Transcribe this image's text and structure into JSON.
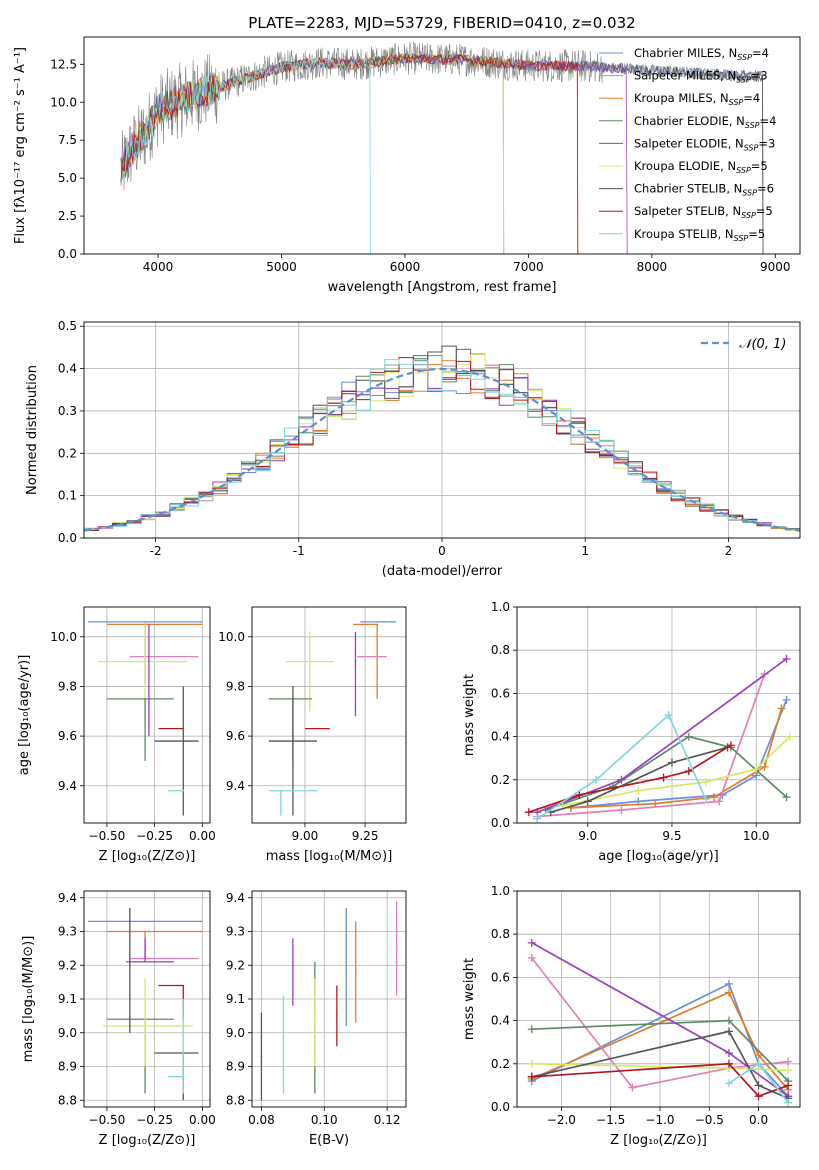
{
  "figure_title": "PLATE=2283, MJD=53729, FIBERID=0410, z=0.032",
  "colors": {
    "Chabrier MILES": "#6a8fd8",
    "Salpeter MILES": "#9b9b9b",
    "Kroupa MILES": "#e07b2c",
    "Chabrier ELODIE": "#5c8a64",
    "Salpeter ELODIE": "#9a3fbf",
    "Kroupa ELODIE": "#d6e86a",
    "Chabrier STELIB": "#555555",
    "Salpeter STELIB": "#b0181e",
    "Kroupa STELIB": "#7fd8dc",
    "pink": "#e07fb8",
    "normal_curve": "#5b8fd6"
  },
  "chart_data": [
    {
      "id": "spectrum",
      "type": "line",
      "xlabel": "wavelength [Angstrom, rest frame]",
      "ylabel": "Flux [fλ10⁻¹⁷ erg cm⁻² s⁻¹ A⁻¹]",
      "xlim": [
        3400,
        9200
      ],
      "ylim": [
        0,
        14.3
      ],
      "xticks": [
        4000,
        5000,
        6000,
        7000,
        8000,
        9000
      ],
      "yticks": [
        0.0,
        2.5,
        5.0,
        7.5,
        10.0,
        12.5
      ],
      "legend_position": "top-right",
      "legend": [
        {
          "label": "Chabrier MILES, N",
          "sub": "SSP",
          "tail": "=4"
        },
        {
          "label": "Salpeter MILES, N",
          "sub": "SSP",
          "tail": "=3"
        },
        {
          "label": "Kroupa MILES, N",
          "sub": "SSP",
          "tail": "=4"
        },
        {
          "label": "Chabrier ELODIE, N",
          "sub": "SSP",
          "tail": "=4"
        },
        {
          "label": "Salpeter ELODIE, N",
          "sub": "SSP",
          "tail": "=3"
        },
        {
          "label": "Kroupa ELODIE, N",
          "sub": "SSP",
          "tail": "=5"
        },
        {
          "label": "Chabrier STELIB, N",
          "sub": "SSP",
          "tail": "=6"
        },
        {
          "label": "Salpeter STELIB, N",
          "sub": "SSP",
          "tail": "=5"
        },
        {
          "label": "Kroupa STELIB, N",
          "sub": "SSP",
          "tail": "=5"
        }
      ],
      "continuum_x": [
        3700,
        3800,
        3900,
        4000,
        4200,
        4500,
        4800,
        5000,
        5300,
        5600,
        6000,
        6500,
        7000,
        7400,
        7800,
        8200,
        8600,
        8900
      ],
      "continuum_y": [
        5.5,
        7.0,
        8.0,
        9.5,
        10.2,
        11.0,
        11.8,
        12.3,
        12.6,
        12.5,
        12.9,
        12.8,
        12.4,
        12.4,
        12.2,
        12.0,
        11.8,
        11.7
      ],
      "model_ranges": [
        [
          3700,
          8900
        ],
        [
          3700,
          8900
        ],
        [
          3700,
          7400
        ],
        [
          3700,
          6800
        ],
        [
          3700,
          7800
        ],
        [
          3700,
          6800
        ],
        [
          3700,
          8900
        ],
        [
          3700,
          7400
        ],
        [
          3700,
          5720
        ]
      ]
    },
    {
      "id": "residuals",
      "type": "histogram",
      "xlabel": "(data-model)/error",
      "ylabel": "Normed distribution",
      "xlim": [
        -2.5,
        2.5
      ],
      "ylim": [
        0,
        0.51
      ],
      "xticks": [
        -2,
        -1,
        0,
        1,
        2
      ],
      "yticks": [
        0.0,
        0.1,
        0.2,
        0.3,
        0.4,
        0.5
      ],
      "bin_width": 0.1,
      "legend_label": "𝒩(0, 1)",
      "legend_position": "top-right",
      "normal_pdf": {
        "mean": 0,
        "sigma": 1
      }
    },
    {
      "id": "age-vs-z",
      "type": "errorbar",
      "xlabel": "Z [log₁₀(Z/Z⊙)]",
      "ylabel": "age  [log₁₀(age/yr)]",
      "xlim": [
        -0.62,
        0.04
      ],
      "ylim": [
        9.25,
        10.12
      ],
      "xticks": [
        -0.5,
        -0.25,
        0.0
      ],
      "xtick_labels": [
        "−0.50",
        "−0.25",
        "0.00"
      ],
      "yticks": [
        9.4,
        9.6,
        9.8,
        10.0
      ],
      "points": [
        {
          "s": "Chabrier MILES",
          "x": -0.3,
          "xerr": [
            0.3,
            0.3
          ],
          "y": 10.06,
          "yerr": [
            0.0,
            0.0
          ]
        },
        {
          "s": "Kroupa MILES",
          "x": -0.3,
          "xerr": [
            0.2,
            0.3
          ],
          "y": 10.05,
          "yerr": [
            0.25,
            0.0
          ]
        },
        {
          "s": "pink",
          "x": -0.2,
          "xerr": [
            0.18,
            0.18
          ],
          "y": 9.92,
          "yerr": [
            0.0,
            0.0
          ]
        },
        {
          "s": "Kroupa ELODIE",
          "x": -0.3,
          "xerr": [
            0.25,
            0.22
          ],
          "y": 9.9,
          "yerr": [
            0.22,
            0.15
          ]
        },
        {
          "s": "Chabrier ELODIE",
          "x": -0.3,
          "xerr": [
            0.2,
            0.15
          ],
          "y": 9.75,
          "yerr": [
            0.25,
            0.0
          ]
        },
        {
          "s": "Salpeter STELIB",
          "x": -0.1,
          "xerr": [
            0.13,
            0.0
          ],
          "y": 9.63,
          "yerr": [
            0.0,
            0.0
          ]
        },
        {
          "s": "Chabrier STELIB",
          "x": -0.1,
          "xerr": [
            0.15,
            0.08
          ],
          "y": 9.58,
          "yerr": [
            0.3,
            0.22
          ]
        },
        {
          "s": "Kroupa STELIB",
          "x": -0.1,
          "xerr": [
            0.08,
            0.0
          ],
          "y": 9.38,
          "yerr": [
            0.0,
            0.0
          ]
        },
        {
          "s": "Salpeter ELODIE",
          "x": -0.28,
          "xerr": [
            0.0,
            0.0
          ],
          "y": 9.8,
          "yerr": [
            0.2,
            0.25
          ]
        }
      ]
    },
    {
      "id": "age-vs-mass",
      "type": "errorbar",
      "xlabel": "mass [log₁₀(M/M⊙)]",
      "ylabel": "",
      "xlim": [
        8.78,
        9.42
      ],
      "ylim": [
        9.25,
        10.12
      ],
      "xticks": [
        9.0,
        9.25
      ],
      "xtick_labels": [
        "9.00",
        "9.25"
      ],
      "yticks": [
        9.4,
        9.6,
        9.8,
        10.0
      ],
      "points": [
        {
          "s": "Chabrier MILES",
          "x": 9.33,
          "xerr": [
            0.1,
            0.05
          ],
          "y": 10.06,
          "yerr": [
            0.0,
            0.0
          ]
        },
        {
          "s": "Kroupa MILES",
          "x": 9.3,
          "xerr": [
            0.1,
            0.0
          ],
          "y": 10.05,
          "yerr": [
            0.3,
            0.0
          ]
        },
        {
          "s": "pink",
          "x": 9.22,
          "xerr": [
            0.0,
            0.12
          ],
          "y": 9.92,
          "yerr": [
            0.0,
            0.0
          ]
        },
        {
          "s": "Kroupa ELODIE",
          "x": 9.02,
          "xerr": [
            0.1,
            0.1
          ],
          "y": 9.9,
          "yerr": [
            0.2,
            0.12
          ]
        },
        {
          "s": "Chabrier ELODIE",
          "x": 8.95,
          "xerr": [
            0.1,
            0.08
          ],
          "y": 9.75,
          "yerr": [
            0.25,
            0.0
          ]
        },
        {
          "s": "Salpeter STELIB",
          "x": 9.1,
          "xerr": [
            0.1,
            0.0
          ],
          "y": 9.63,
          "yerr": [
            0.0,
            0.0
          ]
        },
        {
          "s": "Chabrier STELIB",
          "x": 8.95,
          "xerr": [
            0.1,
            0.1
          ],
          "y": 9.58,
          "yerr": [
            0.3,
            0.22
          ]
        },
        {
          "s": "Kroupa STELIB",
          "x": 8.9,
          "xerr": [
            0.05,
            0.15
          ],
          "y": 9.38,
          "yerr": [
            0.1,
            0.0
          ]
        },
        {
          "s": "Salpeter ELODIE",
          "x": 9.21,
          "xerr": [
            0.0,
            0.0
          ],
          "y": 9.9,
          "yerr": [
            0.22,
            0.12
          ]
        }
      ]
    },
    {
      "id": "weight-vs-age",
      "type": "line",
      "xlabel": "age  [log₁₀(age/yr)]",
      "ylabel": "mass weight",
      "xlim": [
        8.58,
        10.26
      ],
      "ylim": [
        0,
        1.0
      ],
      "xticks": [
        9.0,
        9.5,
        10.0
      ],
      "xtick_labels": [
        "9.0",
        "9.5",
        "10.0"
      ],
      "yticks": [
        0.0,
        0.2,
        0.4,
        0.6,
        0.8,
        1.0
      ],
      "series": [
        {
          "s": "Chabrier MILES",
          "x": [
            8.9,
            9.3,
            9.8,
            10.0,
            10.18
          ],
          "y": [
            0.07,
            0.1,
            0.13,
            0.22,
            0.57
          ]
        },
        {
          "s": "Kroupa MILES",
          "x": [
            8.9,
            9.4,
            9.75,
            10.05,
            10.15
          ],
          "y": [
            0.07,
            0.09,
            0.12,
            0.26,
            0.53
          ]
        },
        {
          "s": "pink",
          "x": [
            8.7,
            9.2,
            9.78,
            10.05
          ],
          "y": [
            0.03,
            0.06,
            0.1,
            0.69
          ]
        },
        {
          "s": "Chabrier ELODIE",
          "x": [
            8.75,
            9.15,
            9.6,
            9.85,
            10.18
          ],
          "y": [
            0.06,
            0.17,
            0.4,
            0.35,
            0.12
          ]
        },
        {
          "s": "Salpeter ELODIE",
          "x": [
            8.7,
            9.2,
            10.18
          ],
          "y": [
            0.05,
            0.2,
            0.76
          ]
        },
        {
          "s": "Kroupa ELODIE",
          "x": [
            8.85,
            9.3,
            9.7,
            10.0,
            10.2
          ],
          "y": [
            0.08,
            0.15,
            0.19,
            0.25,
            0.4
          ]
        },
        {
          "s": "Chabrier STELIB",
          "x": [
            8.78,
            9.0,
            9.5,
            9.83
          ],
          "y": [
            0.05,
            0.1,
            0.28,
            0.35
          ]
        },
        {
          "s": "Salpeter STELIB",
          "x": [
            8.65,
            8.95,
            9.45,
            9.6,
            9.85
          ],
          "y": [
            0.05,
            0.13,
            0.21,
            0.24,
            0.36
          ]
        },
        {
          "s": "Kroupa STELIB",
          "x": [
            8.7,
            9.05,
            9.48,
            9.7
          ],
          "y": [
            0.02,
            0.2,
            0.5,
            0.11
          ]
        }
      ]
    },
    {
      "id": "mass-vs-z",
      "type": "errorbar",
      "xlabel": "Z [log₁₀(Z/Z⊙)]",
      "ylabel": "mass [log₁₀(M/M⊙)]",
      "xlim": [
        -0.62,
        0.04
      ],
      "ylim": [
        8.78,
        9.42
      ],
      "xticks": [
        -0.5,
        -0.25,
        0.0
      ],
      "xtick_labels": [
        "−0.50",
        "−0.25",
        "0.00"
      ],
      "yticks": [
        8.8,
        8.9,
        9.0,
        9.1,
        9.2,
        9.3,
        9.4
      ],
      "points": [
        {
          "s": "Chabrier MILES",
          "x": -0.3,
          "xerr": [
            0.3,
            0.3
          ],
          "y": 9.33,
          "yerr": [
            0.0,
            0.0
          ]
        },
        {
          "s": "Kroupa MILES",
          "x": -0.3,
          "xerr": [
            0.2,
            0.3
          ],
          "y": 9.3,
          "yerr": [
            0.08,
            0.0
          ]
        },
        {
          "s": "pink",
          "x": -0.2,
          "xerr": [
            0.18,
            0.18
          ],
          "y": 9.22,
          "yerr": [
            0.0,
            0.0
          ]
        },
        {
          "s": "Salpeter ELODIE",
          "x": -0.3,
          "xerr": [
            0.1,
            0.15
          ],
          "y": 9.21,
          "yerr": [
            0.0,
            0.07
          ]
        },
        {
          "s": "Salpeter STELIB",
          "x": -0.1,
          "xerr": [
            0.13,
            0.0
          ],
          "y": 9.14,
          "yerr": [
            0.1,
            0.0
          ]
        },
        {
          "s": "Chabrier ELODIE",
          "x": -0.3,
          "xerr": [
            0.2,
            0.15
          ],
          "y": 9.04,
          "yerr": [
            0.22,
            0.0
          ]
        },
        {
          "s": "Kroupa ELODIE",
          "x": -0.3,
          "xerr": [
            0.22,
            0.25
          ],
          "y": 9.02,
          "yerr": [
            0.12,
            0.14
          ]
        },
        {
          "s": "Chabrier STELIB",
          "x": -0.1,
          "xerr": [
            0.15,
            0.08
          ],
          "y": 8.94,
          "yerr": [
            0.14,
            0.0
          ]
        },
        {
          "s": "Kroupa STELIB",
          "x": -0.1,
          "xerr": [
            0.08,
            0.0
          ],
          "y": 8.87,
          "yerr": [
            0.05,
            0.23
          ]
        },
        {
          "s": "Chabrier STELIB",
          "x": -0.38,
          "xerr": [
            0.0,
            0.0
          ],
          "y": 9.2,
          "yerr": [
            0.2,
            0.17
          ]
        }
      ]
    },
    {
      "id": "mass-vs-ebv",
      "type": "errorbar",
      "xlabel": "E(B-V)",
      "ylabel": "",
      "xlim": [
        0.077,
        0.126
      ],
      "ylim": [
        8.78,
        9.42
      ],
      "xticks": [
        0.08,
        0.1,
        0.12
      ],
      "xtick_labels": [
        "0.08",
        "0.10",
        "0.12"
      ],
      "yticks": [
        8.8,
        8.9,
        9.0,
        9.1,
        9.2,
        9.3,
        9.4
      ],
      "points": [
        {
          "s": "Chabrier STELIB",
          "x": 0.08,
          "xerr": [
            0,
            0
          ],
          "y": 8.93,
          "yerr": [
            0.13,
            0.13
          ]
        },
        {
          "s": "Kroupa STELIB",
          "x": 0.087,
          "xerr": [
            0,
            0
          ],
          "y": 8.96,
          "yerr": [
            0.14,
            0.15
          ]
        },
        {
          "s": "Salpeter ELODIE",
          "x": 0.09,
          "xerr": [
            0,
            0
          ],
          "y": 9.18,
          "yerr": [
            0.1,
            0.1
          ]
        },
        {
          "s": "Chabrier ELODIE",
          "x": 0.097,
          "xerr": [
            0,
            0
          ],
          "y": 9.01,
          "yerr": [
            0.19,
            0.2
          ]
        },
        {
          "s": "Kroupa ELODIE",
          "x": 0.097,
          "xerr": [
            0,
            0
          ],
          "y": 9.03,
          "yerr": [
            0.13,
            0.13
          ]
        },
        {
          "s": "Salpeter STELIB",
          "x": 0.104,
          "xerr": [
            0,
            0
          ],
          "y": 9.05,
          "yerr": [
            0.09,
            0.09
          ]
        },
        {
          "s": "Chabrier MILES",
          "x": 0.107,
          "xerr": [
            0,
            0
          ],
          "y": 9.19,
          "yerr": [
            0.17,
            0.18
          ]
        },
        {
          "s": "Kroupa MILES",
          "x": 0.11,
          "xerr": [
            0,
            0
          ],
          "y": 9.18,
          "yerr": [
            0.15,
            0.15
          ]
        },
        {
          "s": "pink",
          "x": 0.123,
          "xerr": [
            0,
            0
          ],
          "y": 9.25,
          "yerr": [
            0.14,
            0.14
          ]
        }
      ]
    },
    {
      "id": "weight-vs-z",
      "type": "line",
      "xlabel": "Z [log₁₀(Z/Z⊙)]",
      "ylabel": "mass weight",
      "xlim": [
        -2.45,
        0.42
      ],
      "ylim": [
        0,
        1.0
      ],
      "xticks": [
        -2.0,
        -1.5,
        -1.0,
        -0.5,
        0.0
      ],
      "xtick_labels": [
        "−2.0",
        "−1.5",
        "−1.0",
        "−0.5",
        "0.0"
      ],
      "yticks": [
        0.0,
        0.2,
        0.4,
        0.6,
        0.8,
        1.0
      ],
      "series": [
        {
          "s": "Chabrier MILES",
          "x": [
            -2.3,
            -0.3,
            0.0,
            0.3
          ],
          "y": [
            0.12,
            0.57,
            0.2,
            0.05
          ]
        },
        {
          "s": "Kroupa MILES",
          "x": [
            -2.3,
            -0.3,
            0.0,
            0.3
          ],
          "y": [
            0.13,
            0.53,
            0.24,
            0.08
          ]
        },
        {
          "s": "pink",
          "x": [
            -2.3,
            -1.28,
            -0.3,
            0.3
          ],
          "y": [
            0.69,
            0.09,
            0.18,
            0.21
          ]
        },
        {
          "s": "Chabrier ELODIE",
          "x": [
            -2.3,
            -0.3,
            0.3
          ],
          "y": [
            0.36,
            0.4,
            0.12
          ]
        },
        {
          "s": "Salpeter ELODIE",
          "x": [
            -2.3,
            -0.3,
            0.3
          ],
          "y": [
            0.76,
            0.25,
            0.05
          ]
        },
        {
          "s": "Kroupa ELODIE",
          "x": [
            -2.3,
            -0.3,
            0.3
          ],
          "y": [
            0.2,
            0.18,
            0.17
          ]
        },
        {
          "s": "Chabrier STELIB",
          "x": [
            -2.3,
            -0.3,
            0.0,
            0.3
          ],
          "y": [
            0.14,
            0.35,
            0.1,
            0.04
          ]
        },
        {
          "s": "Salpeter STELIB",
          "x": [
            -2.3,
            -0.3,
            0.0,
            0.3
          ],
          "y": [
            0.14,
            0.2,
            0.05,
            0.1
          ]
        },
        {
          "s": "Kroupa STELIB",
          "x": [
            -0.3,
            0.0,
            0.3
          ],
          "y": [
            0.11,
            0.2,
            0.02
          ]
        }
      ]
    }
  ]
}
